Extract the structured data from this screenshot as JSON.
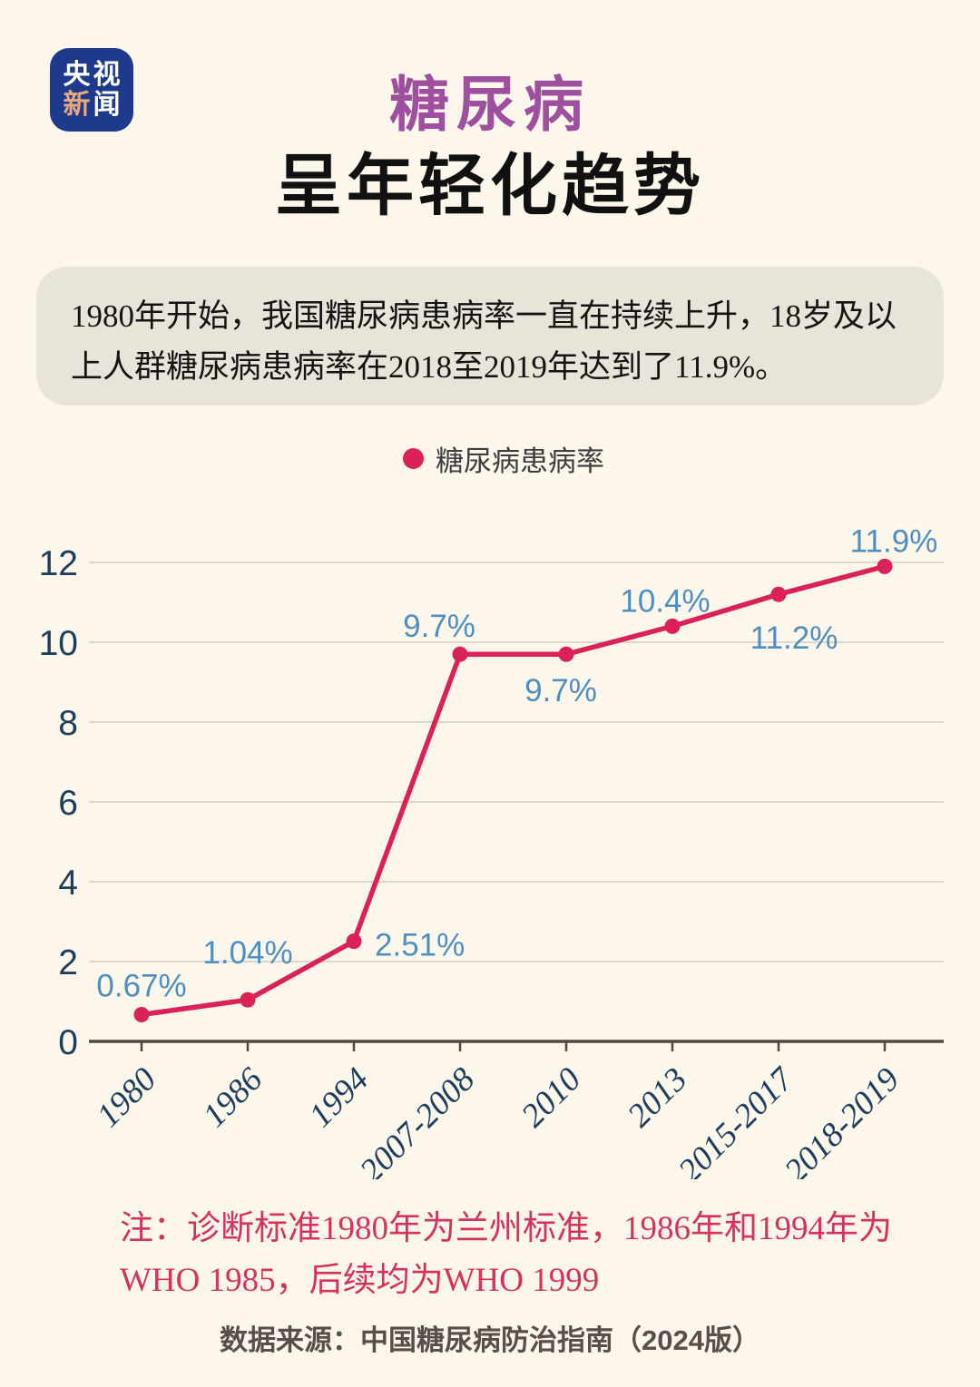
{
  "logo": {
    "row1_char1": "央",
    "row1_char2": "视",
    "row2_char1": "新",
    "row2_char2": "闻"
  },
  "header": {
    "title": "糖尿病",
    "subtitle": "呈年轻化趋势"
  },
  "summary": {
    "text": "1980年开始，我国糖尿病患病率一直在持续上升，18岁及以上人群糖尿病患病率在2018至2019年达到了11.9%。"
  },
  "legend": {
    "label": "糖尿病患病率"
  },
  "chart_data": {
    "type": "line",
    "series_name": "糖尿病患病率",
    "categories": [
      "1980",
      "1986",
      "1994",
      "2007-2008",
      "2010",
      "2013",
      "2015-2017",
      "2018-2019"
    ],
    "values": [
      0.67,
      1.04,
      2.51,
      9.7,
      9.7,
      10.4,
      11.2,
      11.9
    ],
    "labels": [
      "0.67%",
      "1.04%",
      "2.51%",
      "9.7%",
      "9.7%",
      "10.4%",
      "11.2%",
      "11.9%"
    ],
    "ylim": [
      0,
      12
    ],
    "yticks": [
      0,
      2,
      4,
      6,
      8,
      10,
      12
    ],
    "grid": true,
    "x_tick_rotation": 45,
    "legend_position": "top"
  },
  "note": {
    "line1": "注：诊断标准1980年为兰州标准，1986年和1994年为",
    "line2": "WHO 1985，后续均为WHO 1999"
  },
  "source": {
    "text": "数据来源：中国糖尿病防治指南（2024版）"
  },
  "colors": {
    "background": "#FDF6EA",
    "logo_blue": "#1E3A8C",
    "logo_accent": "#E8A97E",
    "title_purple": "#9E509E",
    "line_pink": "#DA2159",
    "data_label_blue": "#4E8EC1",
    "axis_text_navy": "#1C3D5D",
    "axis_line_gray": "#4E4A43",
    "grid_gray": "#D2CCC1",
    "summary_box_bg": "#E9E4D9",
    "note_crimson": "#D4335F"
  }
}
